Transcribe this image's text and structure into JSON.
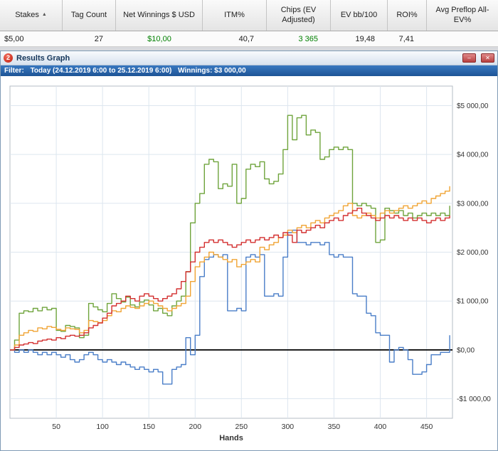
{
  "table": {
    "sort_glyph": "▲",
    "columns": [
      {
        "label": "Stakes"
      },
      {
        "label": "Tag Count"
      },
      {
        "label": "Net Winnings $ USD"
      },
      {
        "label": "ITM%"
      },
      {
        "label": "Chips (EV Adjusted)"
      },
      {
        "label": "EV bb/100"
      },
      {
        "label": "ROI%"
      },
      {
        "label": "Avg Preflop All-EV%"
      }
    ],
    "row": {
      "stakes": "$5,00",
      "tag_count": "27",
      "net_winnings": "$10,00",
      "itm": "40,7",
      "chips_ev": "3 365",
      "ev_bb100": "19,48",
      "roi": "7,41",
      "avg_preflop_allin_ev": ""
    },
    "positive_color": "#008000"
  },
  "window": {
    "title": "Results Graph",
    "icon_text": "2",
    "minimize_glyph": "–",
    "close_glyph": "✕"
  },
  "filter": {
    "label": "Filter:",
    "range": "Today (24.12.2019 6:00 to 25.12.2019 6:00)",
    "winnings": "Winnings: $3 000,00"
  },
  "chart_data": {
    "type": "line",
    "xlabel": "Hands",
    "x0": 0,
    "dx": 5,
    "xlim": [
      0,
      478
    ],
    "ylim": [
      -1400,
      5400
    ],
    "xticks": [
      50,
      100,
      150,
      200,
      250,
      300,
      350,
      400,
      450
    ],
    "yticks": [
      -1000,
      0,
      1000,
      2000,
      3000,
      4000,
      5000
    ],
    "ytick_labels": [
      "-$1 000,00",
      "$0,00",
      "$1 000,00",
      "$2 000,00",
      "$3 000,00",
      "$4 000,00",
      "$5 000,00"
    ],
    "grid_color": "#dde6ef",
    "plot_border": "#b4bcc4",
    "zero_line_color": "#000000",
    "series": [
      {
        "name": "green",
        "color": "#6fa43c",
        "values": [
          0,
          200,
          750,
          800,
          780,
          850,
          800,
          870,
          820,
          850,
          400,
          380,
          500,
          480,
          450,
          250,
          300,
          950,
          880,
          820,
          780,
          950,
          1150,
          1050,
          980,
          1080,
          920,
          880,
          980,
          1020,
          920,
          800,
          850,
          750,
          700,
          900,
          1000,
          1100,
          1600,
          2600,
          3000,
          3200,
          3800,
          3900,
          3850,
          3300,
          3400,
          3350,
          3800,
          3000,
          3100,
          3700,
          3800,
          3750,
          3850,
          3500,
          3400,
          3450,
          3600,
          4100,
          4800,
          4300,
          4750,
          4800,
          4400,
          4500,
          4450,
          3900,
          3950,
          4100,
          4150,
          4100,
          4150,
          4100,
          3000,
          2950,
          3000,
          2950,
          2900,
          2200,
          2250,
          2900,
          2850,
          2800,
          2850,
          2750,
          2800,
          2700,
          2750,
          2800,
          2750,
          2800,
          2750,
          2800,
          2750,
          2950
        ]
      },
      {
        "name": "blue",
        "color": "#4a7ec8",
        "values": [
          0,
          -50,
          0,
          -50,
          0,
          -50,
          -100,
          -50,
          -100,
          -50,
          -100,
          -150,
          -100,
          -200,
          -250,
          -200,
          -100,
          -50,
          -100,
          -200,
          -250,
          -200,
          -250,
          -300,
          -250,
          -300,
          -350,
          -400,
          -350,
          -400,
          -450,
          -400,
          -450,
          -700,
          -700,
          -400,
          -350,
          -300,
          250,
          -100,
          300,
          1500,
          1850,
          1900,
          1950,
          1900,
          1950,
          800,
          800,
          850,
          800,
          1900,
          1950,
          1900,
          1950,
          1100,
          1100,
          1150,
          1100,
          1900,
          2400,
          2450,
          2200,
          2200,
          2150,
          2200,
          2200,
          2150,
          2200,
          1950,
          1900,
          1950,
          1900,
          1900,
          1150,
          1100,
          1100,
          750,
          700,
          350,
          300,
          300,
          -250,
          0,
          50,
          0,
          -200,
          -500,
          -500,
          -450,
          -300,
          -100,
          -100,
          -50,
          -50,
          300
        ]
      },
      {
        "name": "orange",
        "color": "#f0a434",
        "values": [
          0,
          100,
          300,
          350,
          400,
          380,
          450,
          430,
          480,
          460,
          420,
          400,
          450,
          430,
          420,
          350,
          400,
          600,
          580,
          560,
          600,
          700,
          800,
          780,
          850,
          900,
          870,
          850,
          900,
          950,
          1000,
          950,
          900,
          850,
          800,
          850,
          900,
          950,
          1100,
          1400,
          1700,
          1800,
          1900,
          2000,
          1950,
          1900,
          1850,
          1800,
          1850,
          1700,
          1750,
          1800,
          1850,
          1800,
          2100,
          2050,
          2150,
          2200,
          2300,
          2350,
          2450,
          2400,
          2500,
          2550,
          2500,
          2600,
          2650,
          2600,
          2700,
          2750,
          2800,
          2850,
          2950,
          3000,
          2750,
          2700,
          2750,
          2800,
          2750,
          2700,
          2800,
          2850,
          2800,
          2850,
          2900,
          2950,
          2900,
          2950,
          3000,
          3050,
          3000,
          3100,
          3150,
          3200,
          3250,
          3350
        ]
      },
      {
        "name": "red",
        "color": "#d32f2f",
        "values": [
          0,
          50,
          100,
          120,
          150,
          130,
          180,
          200,
          220,
          200,
          250,
          230,
          280,
          300,
          280,
          300,
          350,
          450,
          500,
          550,
          650,
          750,
          900,
          950,
          1000,
          1100,
          1050,
          1000,
          1100,
          1150,
          1100,
          1050,
          1000,
          1050,
          1100,
          1150,
          1250,
          1400,
          1600,
          1800,
          2000,
          2100,
          2200,
          2250,
          2200,
          2250,
          2200,
          2150,
          2100,
          2150,
          2200,
          2250,
          2200,
          2250,
          2300,
          2250,
          2300,
          2350,
          2300,
          2400,
          2350,
          2200,
          2450,
          2400,
          2450,
          2500,
          2550,
          2500,
          2600,
          2650,
          2700,
          2650,
          2750,
          2800,
          2850,
          2900,
          2800,
          2750,
          2700,
          2650,
          2700,
          2750,
          2700,
          2750,
          2700,
          2650,
          2700,
          2650,
          2700,
          2650,
          2600,
          2650,
          2700,
          2650,
          2700,
          2750
        ]
      }
    ]
  }
}
